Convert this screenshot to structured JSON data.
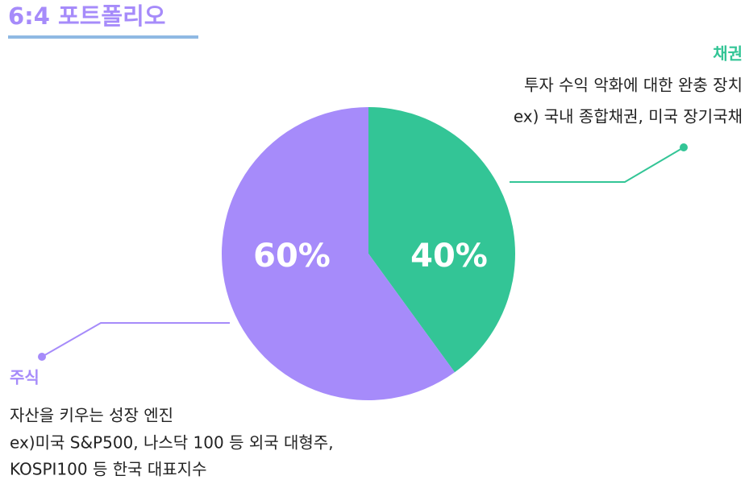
{
  "chart_data": {
    "type": "pie",
    "title": "6:4 포트폴리오",
    "categories": [
      "채권",
      "주식"
    ],
    "values": [
      40,
      60
    ],
    "value_labels": [
      "40%",
      "60%"
    ],
    "colors": [
      "#33c596",
      "#a68bfa"
    ],
    "descriptions": [
      [
        "투자 수익 악화에 대한 완충 장치",
        "ex) 국내 종합채권, 미국 장기국채"
      ],
      [
        "자산을 키우는 성장 엔진",
        "ex)미국 S&P500, 나스닥 100 등 외국 대형주,",
        "KOSPI100 등 한국 대표지수"
      ]
    ]
  }
}
